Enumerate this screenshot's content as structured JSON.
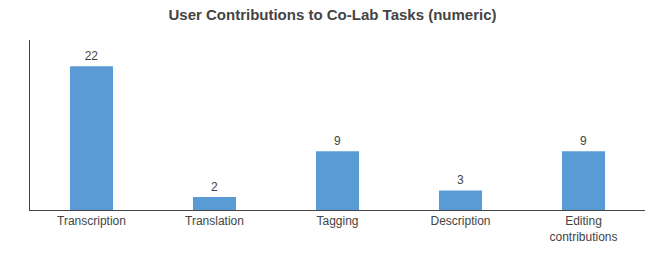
{
  "chart_data": {
    "type": "bar",
    "title": "User Contributions to Co-Lab Tasks (numeric)",
    "categories": [
      "Transcription",
      "Translation",
      "Tagging",
      "Description",
      "Editing\ncontributions"
    ],
    "values": [
      22,
      2,
      9,
      3,
      9
    ],
    "color": "#5B9BD5",
    "ylim": [
      0,
      26
    ],
    "grid": false,
    "data_labels": true,
    "tick_labels": "x"
  }
}
